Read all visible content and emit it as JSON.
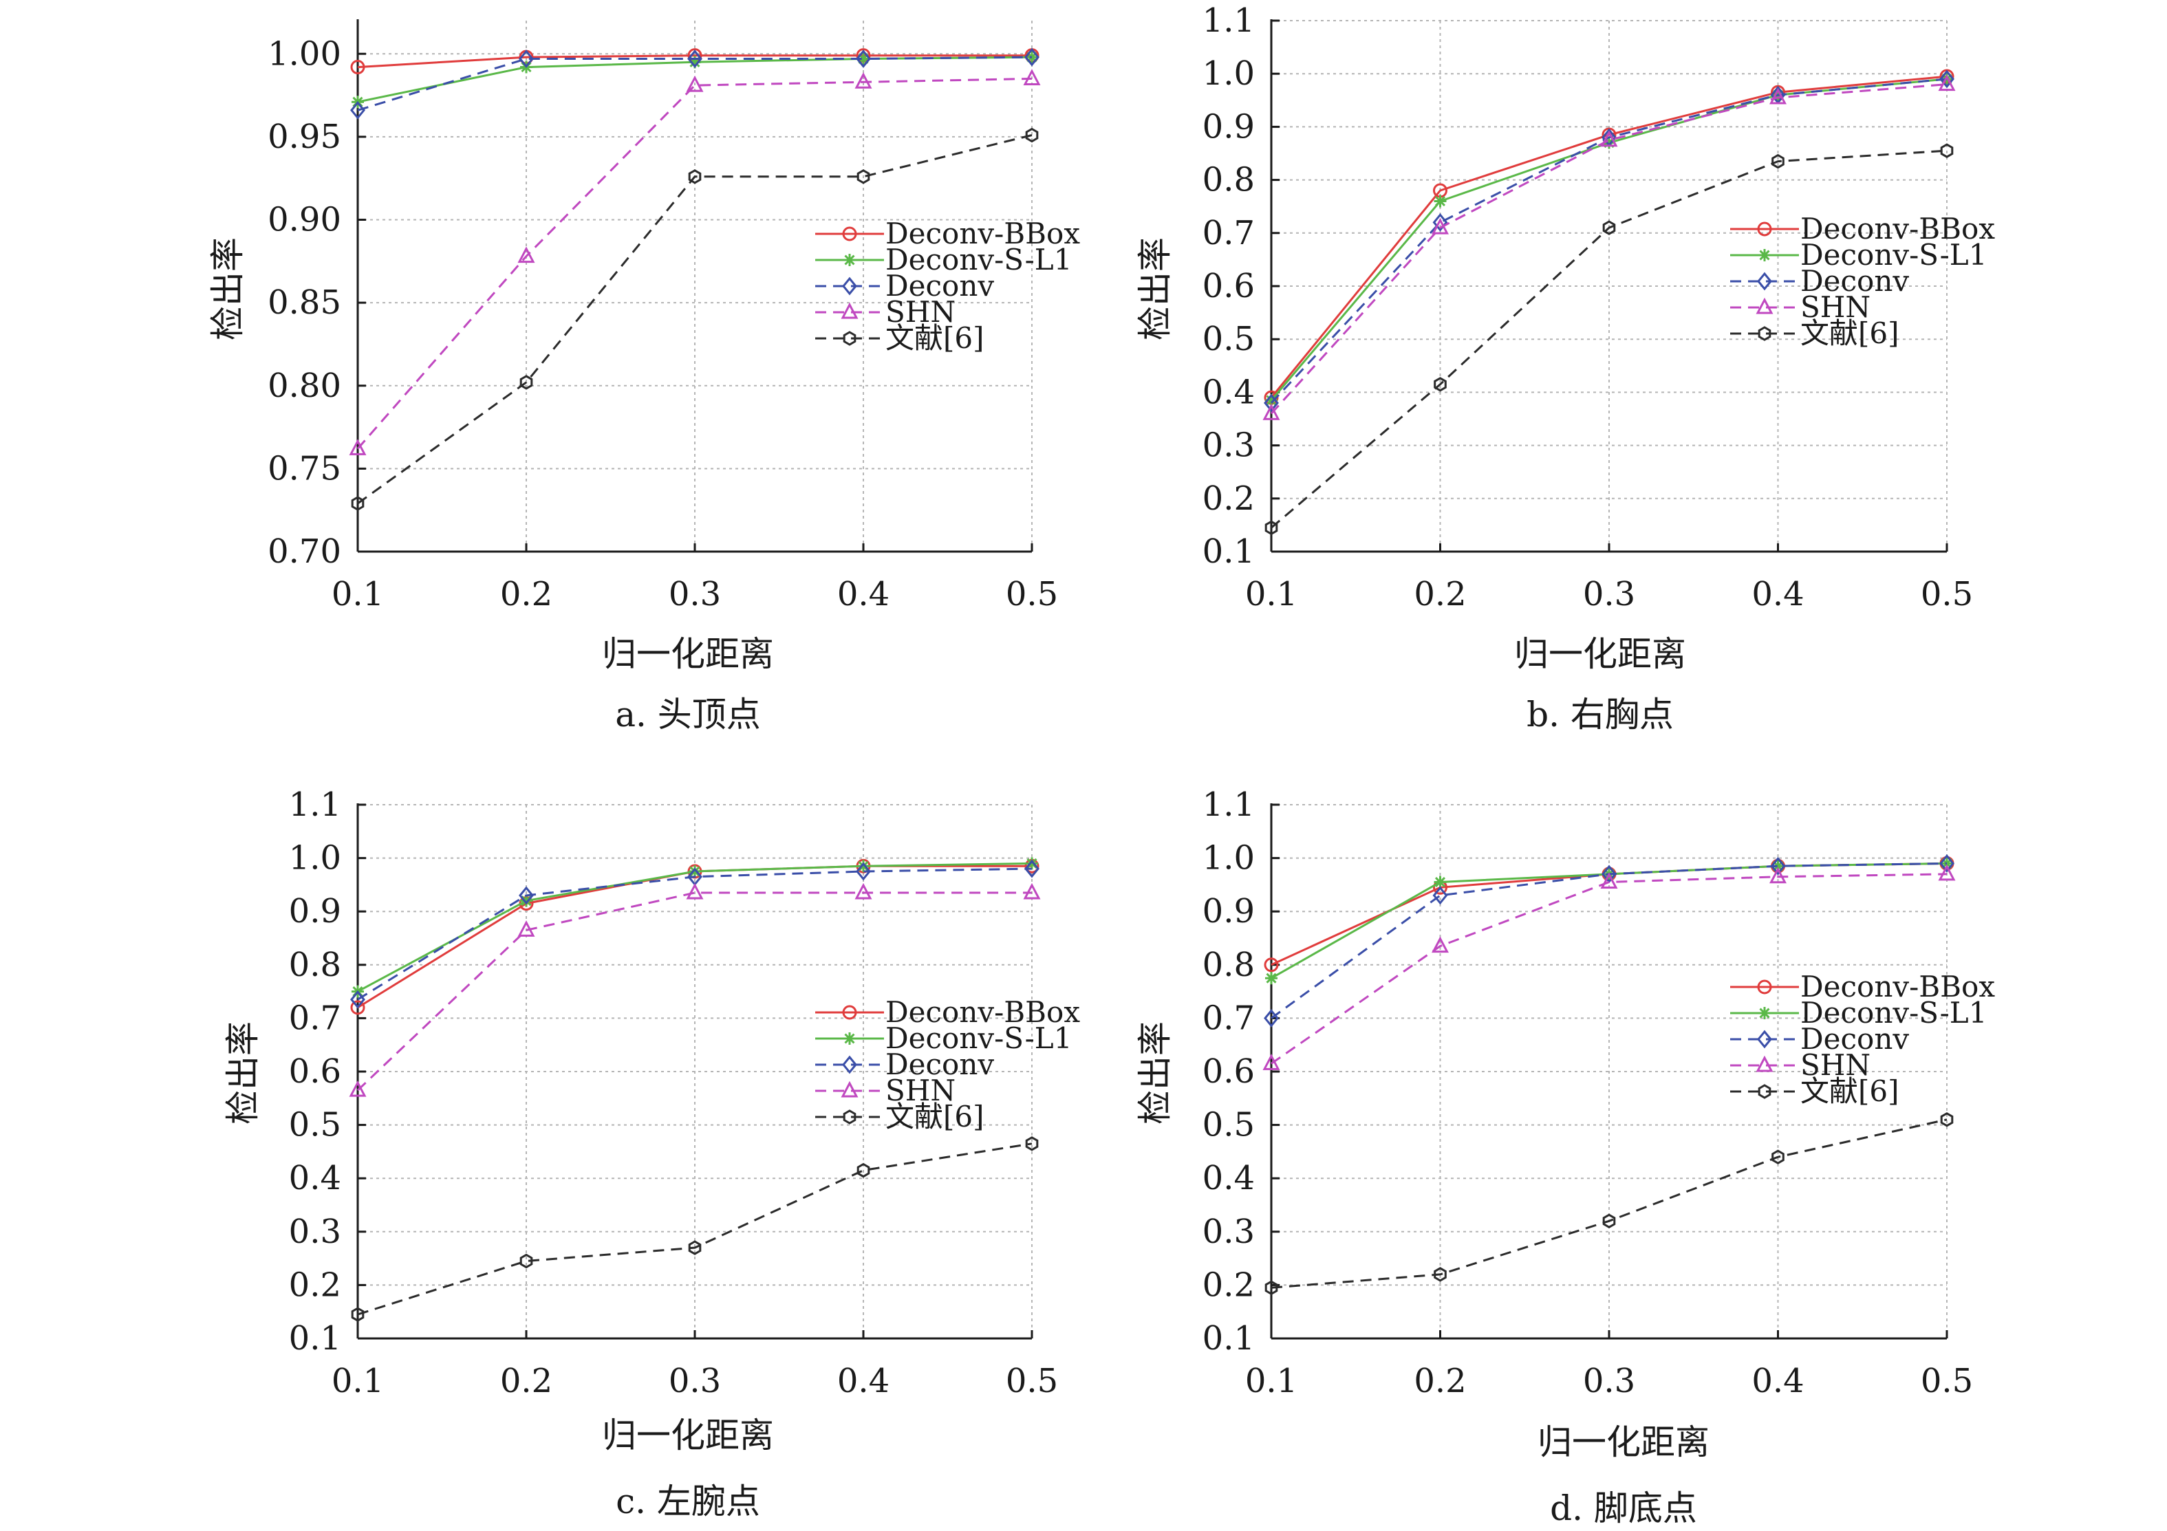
{
  "colors": {
    "Deconv-BBox": "#e03c3c",
    "Deconv-S-L1": "#5ab848",
    "Deconv": "#3a4ea8",
    "SHN": "#c048c0",
    "文献[6]": "#2b2b2b",
    "grid": "#b4b4b4",
    "axis": "#1a1a1a"
  },
  "chart_data": [
    {
      "type": "line",
      "caption": "a. 头顶点",
      "xlabel": "归一化距离",
      "ylabel": "检出率",
      "x": [
        0.1,
        0.2,
        0.3,
        0.4,
        0.5
      ],
      "x_ticks": [
        "0.1",
        "0.2",
        "0.3",
        "0.4",
        "0.5"
      ],
      "ylim": [
        0.7,
        1.02
      ],
      "y_ticks": [
        "0.70",
        "0.75",
        "0.80",
        "0.85",
        "0.90",
        "0.95",
        "1.00"
      ],
      "grid": true,
      "legend_position": "center-right",
      "series": [
        {
          "name": "Deconv-BBox",
          "marker": "circle",
          "dash": "solid",
          "values": [
            0.992,
            0.998,
            0.999,
            0.999,
            0.999
          ]
        },
        {
          "name": "Deconv-S-L1",
          "marker": "star",
          "dash": "solid",
          "values": [
            0.971,
            0.992,
            0.995,
            0.997,
            0.998
          ]
        },
        {
          "name": "Deconv",
          "marker": "diamond",
          "dash": "dashed",
          "values": [
            0.966,
            0.997,
            0.997,
            0.997,
            0.998
          ]
        },
        {
          "name": "SHN",
          "marker": "triangle",
          "dash": "dashed",
          "values": [
            0.762,
            0.878,
            0.981,
            0.983,
            0.985
          ]
        },
        {
          "name": "文献[6]",
          "marker": "hexagon",
          "dash": "dashed",
          "values": [
            0.729,
            0.802,
            0.926,
            0.926,
            0.951
          ]
        }
      ]
    },
    {
      "type": "line",
      "caption": "b. 右胸点",
      "xlabel": "归一化距离",
      "ylabel": "检出率",
      "x": [
        0.1,
        0.2,
        0.3,
        0.4,
        0.5
      ],
      "x_ticks": [
        "0.1",
        "0.2",
        "0.3",
        "0.4",
        "0.5"
      ],
      "ylim": [
        0.1,
        1.1
      ],
      "y_ticks": [
        "0.1",
        "0.2",
        "0.3",
        "0.4",
        "0.5",
        "0.6",
        "0.7",
        "0.8",
        "0.9",
        "1.0",
        "1.1"
      ],
      "grid": true,
      "legend_position": "center-right",
      "series": [
        {
          "name": "Deconv-BBox",
          "marker": "circle",
          "dash": "solid",
          "values": [
            0.39,
            0.78,
            0.885,
            0.965,
            0.995
          ]
        },
        {
          "name": "Deconv-S-L1",
          "marker": "star",
          "dash": "solid",
          "values": [
            0.385,
            0.76,
            0.87,
            0.96,
            0.99
          ]
        },
        {
          "name": "Deconv",
          "marker": "diamond",
          "dash": "dashed",
          "values": [
            0.38,
            0.72,
            0.88,
            0.96,
            0.99
          ]
        },
        {
          "name": "SHN",
          "marker": "triangle",
          "dash": "dashed",
          "values": [
            0.36,
            0.71,
            0.875,
            0.955,
            0.98
          ]
        },
        {
          "name": "文献[6]",
          "marker": "hexagon",
          "dash": "dashed",
          "values": [
            0.145,
            0.415,
            0.71,
            0.835,
            0.855
          ]
        }
      ]
    },
    {
      "type": "line",
      "caption": "c. 左腕点",
      "xlabel": "归一化距离",
      "ylabel": "检出率",
      "x": [
        0.1,
        0.2,
        0.3,
        0.4,
        0.5
      ],
      "x_ticks": [
        "0.1",
        "0.2",
        "0.3",
        "0.4",
        "0.5"
      ],
      "ylim": [
        0.1,
        1.1
      ],
      "y_ticks": [
        "0.1",
        "0.2",
        "0.3",
        "0.4",
        "0.5",
        "0.6",
        "0.7",
        "0.8",
        "0.9",
        "1.0",
        "1.1"
      ],
      "grid": true,
      "legend_position": "center-right",
      "series": [
        {
          "name": "Deconv-BBox",
          "marker": "circle",
          "dash": "solid",
          "values": [
            0.72,
            0.915,
            0.975,
            0.985,
            0.985
          ]
        },
        {
          "name": "Deconv-S-L1",
          "marker": "star",
          "dash": "solid",
          "values": [
            0.75,
            0.92,
            0.975,
            0.985,
            0.99
          ]
        },
        {
          "name": "Deconv",
          "marker": "diamond",
          "dash": "dashed",
          "values": [
            0.735,
            0.93,
            0.965,
            0.975,
            0.98
          ]
        },
        {
          "name": "SHN",
          "marker": "triangle",
          "dash": "dashed",
          "values": [
            0.565,
            0.865,
            0.935,
            0.935,
            0.935
          ]
        },
        {
          "name": "文献[6]",
          "marker": "hexagon",
          "dash": "dashed",
          "values": [
            0.145,
            0.245,
            0.27,
            0.415,
            0.465
          ]
        }
      ]
    },
    {
      "type": "line",
      "caption": "d. 脚底点",
      "xlabel": "归一化距离",
      "ylabel": "检出率",
      "x": [
        0.1,
        0.2,
        0.3,
        0.4,
        0.5
      ],
      "x_ticks": [
        "0.1",
        "0.2",
        "0.3",
        "0.4",
        "0.5"
      ],
      "ylim": [
        0.1,
        1.1
      ],
      "y_ticks": [
        "0.1",
        "0.2",
        "0.3",
        "0.4",
        "0.5",
        "0.6",
        "0.7",
        "0.8",
        "0.9",
        "1.0",
        "1.1"
      ],
      "grid": true,
      "legend_position": "center-right",
      "series": [
        {
          "name": "Deconv-BBox",
          "marker": "circle",
          "dash": "solid",
          "values": [
            0.8,
            0.945,
            0.97,
            0.985,
            0.99
          ]
        },
        {
          "name": "Deconv-S-L1",
          "marker": "star",
          "dash": "solid",
          "values": [
            0.775,
            0.955,
            0.97,
            0.985,
            0.99
          ]
        },
        {
          "name": "Deconv",
          "marker": "diamond",
          "dash": "dashed",
          "values": [
            0.7,
            0.93,
            0.97,
            0.985,
            0.99
          ]
        },
        {
          "name": "SHN",
          "marker": "triangle",
          "dash": "dashed",
          "values": [
            0.615,
            0.835,
            0.955,
            0.965,
            0.97
          ]
        },
        {
          "name": "文献[6]",
          "marker": "hexagon",
          "dash": "dashed",
          "values": [
            0.195,
            0.22,
            0.32,
            0.44,
            0.51
          ]
        }
      ]
    }
  ]
}
